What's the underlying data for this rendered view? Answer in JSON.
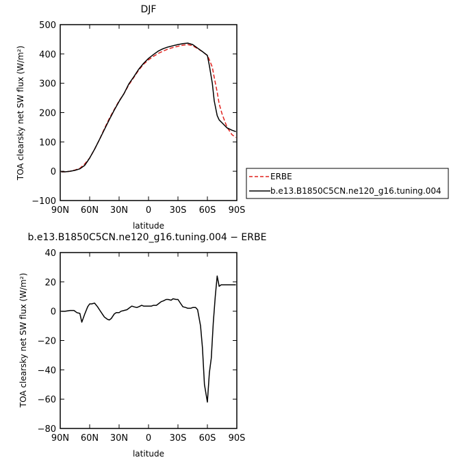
{
  "chart_data": [
    {
      "type": "line",
      "title": "DJF",
      "xlabel": "latitude",
      "ylabel": "TOA clearsky net SW flux (W/m²)",
      "xlim": [
        90,
        -90
      ],
      "ylim": [
        -100,
        500
      ],
      "xticks": [
        90,
        60,
        30,
        0,
        -30,
        -60,
        -90
      ],
      "xtick_labels": [
        "90N",
        "60N",
        "30N",
        "0",
        "30S",
        "60S",
        "90S"
      ],
      "yticks": [
        -100,
        0,
        100,
        200,
        300,
        400,
        500
      ],
      "ytick_labels": [
        "−100",
        "0",
        "100",
        "200",
        "300",
        "400",
        "500"
      ],
      "legend_placement": "right",
      "series": [
        {
          "name": "ERBE",
          "color": "#e0201c",
          "dash": "dashed",
          "x": [
            89,
            85,
            80,
            75,
            70,
            65,
            60,
            55,
            50,
            45,
            40,
            35,
            30,
            25,
            20,
            15,
            10,
            5,
            0,
            -5,
            -10,
            -15,
            -20,
            -25,
            -30,
            -35,
            -40,
            -45,
            -50,
            -55,
            -60,
            -62,
            -65,
            -67,
            -70,
            -72,
            -75,
            -80,
            -85,
            -89
          ],
          "y": [
            -2,
            -2,
            0,
            4,
            10,
            25,
            45,
            75,
            108,
            145,
            180,
            210,
            240,
            265,
            295,
            320,
            345,
            365,
            380,
            392,
            402,
            410,
            417,
            422,
            426,
            430,
            432,
            428,
            418,
            408,
            395,
            380,
            355,
            320,
            270,
            230,
            195,
            150,
            125,
            115
          ]
        },
        {
          "name": "b.e13.B1850C5CN.ne120_g16.tuning.004",
          "color": "#000000",
          "dash": "solid",
          "x": [
            89,
            85,
            80,
            75,
            70,
            65,
            60,
            55,
            50,
            45,
            40,
            35,
            30,
            25,
            20,
            15,
            10,
            5,
            0,
            -5,
            -10,
            -15,
            -20,
            -25,
            -30,
            -35,
            -40,
            -45,
            -50,
            -55,
            -60,
            -62,
            -65,
            -67,
            -70,
            -72,
            -75,
            -80,
            -85,
            -89
          ],
          "y": [
            -2,
            -2,
            0,
            3,
            8,
            20,
            45,
            75,
            108,
            142,
            176,
            208,
            238,
            265,
            298,
            322,
            348,
            368,
            385,
            398,
            410,
            418,
            424,
            428,
            432,
            435,
            437,
            432,
            420,
            408,
            395,
            360,
            300,
            240,
            190,
            175,
            165,
            148,
            140,
            135
          ]
        }
      ]
    },
    {
      "type": "line",
      "title": "b.e13.B1850C5CN.ne120_g16.tuning.004 − ERBE",
      "xlabel": "latitude",
      "ylabel": "TOA clearsky net SW flux (W/m²)",
      "xlim": [
        90,
        -90
      ],
      "ylim": [
        -80,
        40
      ],
      "xticks": [
        90,
        60,
        30,
        0,
        -30,
        -60,
        -90
      ],
      "xtick_labels": [
        "90N",
        "60N",
        "30N",
        "0",
        "30S",
        "60S",
        "90S"
      ],
      "yticks": [
        -80,
        -60,
        -40,
        -20,
        0,
        20,
        40
      ],
      "ytick_labels": [
        "−80",
        "−60",
        "−40",
        "−20",
        "0",
        "20",
        "40"
      ],
      "series": [
        {
          "color": "#000000",
          "dash": "solid",
          "x": [
            89,
            85,
            80,
            76,
            73,
            70,
            68,
            65,
            62,
            60,
            58,
            55,
            52,
            50,
            47,
            45,
            42,
            40,
            38,
            35,
            33,
            30,
            28,
            25,
            22,
            20,
            17,
            15,
            12,
            10,
            7,
            5,
            2,
            0,
            -3,
            -5,
            -8,
            -10,
            -13,
            -15,
            -18,
            -20,
            -23,
            -25,
            -28,
            -30,
            -33,
            -35,
            -38,
            -40,
            -43,
            -45,
            -48,
            -50,
            -53,
            -55,
            -57,
            -60,
            -62,
            -64,
            -66,
            -68,
            -70,
            -72,
            -74,
            -76,
            -79,
            -82,
            -85,
            -89
          ],
          "y": [
            0,
            0,
            0.5,
            0.5,
            -1,
            -1.5,
            -7.5,
            -2,
            3,
            5,
            5,
            5.5,
            3,
            1,
            -2,
            -4,
            -5.5,
            -6,
            -5,
            -2,
            -1,
            -1,
            0,
            0.5,
            1,
            2,
            3.5,
            3,
            2.5,
            3,
            4,
            3.5,
            3.5,
            3.5,
            3.5,
            4,
            4,
            5,
            6.5,
            7,
            8,
            8,
            7.5,
            8.5,
            8,
            8,
            5,
            3,
            2.5,
            2,
            2,
            2.5,
            2.5,
            1,
            -10,
            -25,
            -50,
            -62,
            -42,
            -32,
            -8,
            10,
            24,
            17,
            18,
            18,
            18,
            18,
            18,
            18
          ]
        }
      ]
    }
  ],
  "legend": {
    "entries": [
      {
        "label": "ERBE",
        "color": "#e0201c",
        "dash": "dashed"
      },
      {
        "label": "b.e13.B1850C5CN.ne120_g16.tuning.004",
        "color": "#000000",
        "dash": "solid"
      }
    ]
  }
}
